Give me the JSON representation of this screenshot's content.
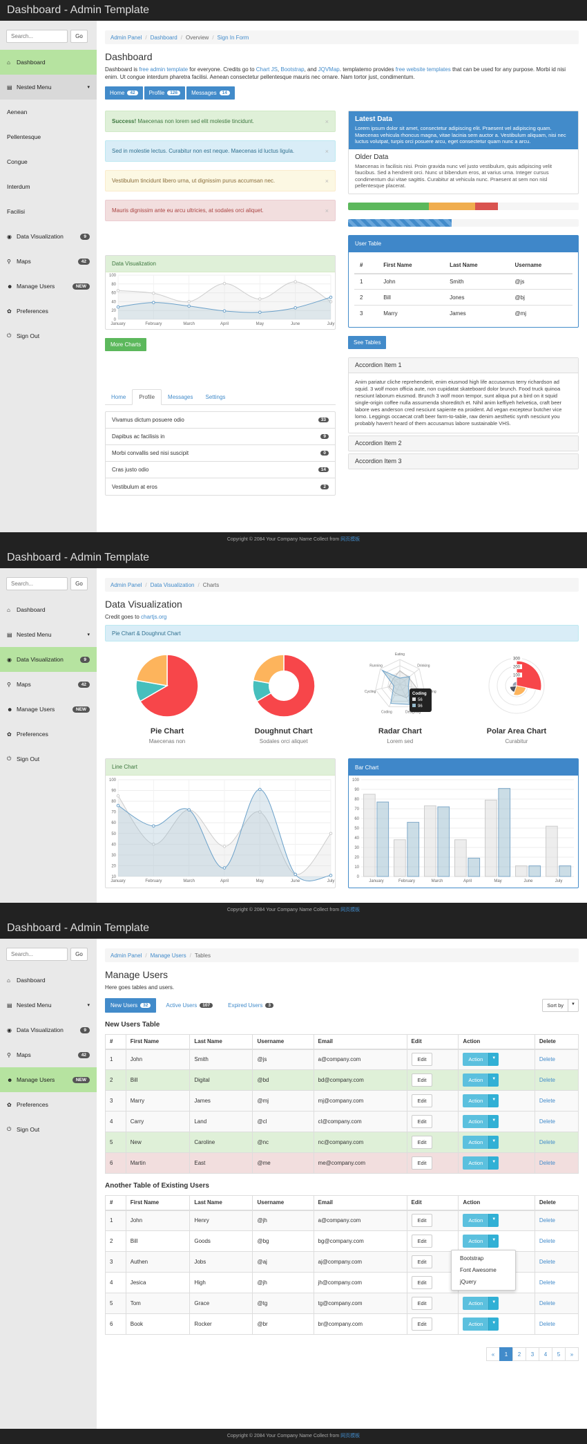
{
  "app_title": "Dashboard - Admin Template",
  "search": {
    "placeholder": "Search...",
    "go": "Go"
  },
  "footer": {
    "text": "Copyright © 2084 Your Company Name Collect from ",
    "link": "网页模板"
  },
  "s1": {
    "nav": [
      {
        "icon": "⌂",
        "label": "Dashboard"
      },
      {
        "icon": "▤",
        "label": "Nested Menu",
        "caret": "▾"
      },
      {
        "icon": "",
        "label": "Aenean"
      },
      {
        "icon": "",
        "label": "Pellentesque"
      },
      {
        "icon": "",
        "label": "Congue"
      },
      {
        "icon": "",
        "label": "Interdum"
      },
      {
        "icon": "",
        "label": "Facilisi"
      },
      {
        "icon": "◉",
        "label": "Data Visualization",
        "badge": "9"
      },
      {
        "icon": "⚲",
        "label": "Maps",
        "badge": "42"
      },
      {
        "icon": "☻",
        "label": "Manage Users",
        "badge": "NEW"
      },
      {
        "icon": "✿",
        "label": "Preferences"
      },
      {
        "icon": "⏻",
        "label": "Sign Out"
      }
    ],
    "crumbs": [
      "Admin Panel",
      "Dashboard",
      "Overview",
      "Sign In Form"
    ],
    "title": "Dashboard",
    "desc": {
      "p1": "Dashboard is ",
      "l1": "free admin template",
      "p2": " for everyone. Credits go to ",
      "l2": "Chart JS",
      "p3": ", ",
      "l3": "Bootstrap",
      "p4": ", and ",
      "l4": "JQVMap",
      "p5": ". templatemo provides ",
      "l5": "free website templates",
      "p6": " that can be used for any purpose. Morbi id nisi enim. Ut congue interdum pharetra facilisi. Aenean consectetur pellentesque mauris nec ornare. Nam tortor just, condimentum."
    },
    "pills": [
      {
        "label": "Home",
        "badge": "42"
      },
      {
        "label": "Profile",
        "badge": "126"
      },
      {
        "label": "Messages",
        "badge": "14"
      }
    ],
    "alerts": [
      {
        "strong": "Success!",
        "text": " Maecenas non lorem sed elit molestie tincidunt."
      },
      {
        "strong": "",
        "text": "Sed in molestie lectus. Curabitur non est neque. Maecenas id luctus ligula."
      },
      {
        "strong": "",
        "text": "Vestibulum tincidunt libero urna, ut dignissim purus accumsan nec."
      },
      {
        "strong": "",
        "text": "Mauris dignissim ante eu arcu ultricies, at sodales orci aliquet."
      }
    ],
    "close_glyph": "×",
    "latest": {
      "title": "Latest Data",
      "text": "Lorem ipsum dolor sit amet, consectetur adipiscing elit. Praesent vel adipiscing quam. Maecenas vehicula rhoncus magna, vitae lacinia sem auctor a. Vestibulum aliquam, nisi nec luctus volutpat, turpis orci posuere arcu, eget consectetur quam nunc a arcu.",
      "title2": "Older Data",
      "text2": "Maecenas in facilisis nisi. Proin gravida nunc vel justo vestibulum, quis adipiscing velit faucibus. Sed a hendrerit orci. Nunc ut bibendum eros, at varius urna. Integer cursus condimentum dui vitae sagittis. Curabitur at vehicula nunc. Praesent at sem non nisl pellentesque placerat."
    },
    "progress1": [
      {
        "pct": 35,
        "color": "#5cb85c"
      },
      {
        "pct": 20,
        "color": "#f0ad4e"
      },
      {
        "pct": 10,
        "color": "#d9534f"
      }
    ],
    "progress2": {
      "pct": 45,
      "color": "#428bca"
    },
    "dv_panel": "Data Visualization",
    "more_charts": "More Charts",
    "user_table": {
      "title": "User Table",
      "cols": [
        "#",
        "First Name",
        "Last Name",
        "Username"
      ],
      "rows": [
        [
          "1",
          "John",
          "Smith",
          "@js"
        ],
        [
          "2",
          "Bill",
          "Jones",
          "@bj"
        ],
        [
          "3",
          "Marry",
          "James",
          "@mj"
        ]
      ],
      "button": "See Tables"
    },
    "tabs": [
      "Home",
      "Profile",
      "Messages",
      "Settings"
    ],
    "list": [
      {
        "label": "Vivamus dictum posuere odio",
        "badge": "33"
      },
      {
        "label": "Dapibus ac facilisis in",
        "badge": "9"
      },
      {
        "label": "Morbi convallis sed nisi suscipit",
        "badge": "0"
      },
      {
        "label": "Cras justo odio",
        "badge": "14"
      },
      {
        "label": "Vestibulum at eros",
        "badge": "2"
      }
    ],
    "accordion": {
      "i1": "Accordion Item 1",
      "body": "Anim pariatur cliche reprehenderit, enim eiusmod high life accusamus terry richardson ad squid. 3 wolf moon officia aute, non cupidatat skateboard dolor brunch. Food truck quinoa nesciunt laborum eiusmod. Brunch 3 wolf moon tempor, sunt aliqua put a bird on it squid single-origin coffee nulla assumenda shoreditch et. Nihil anim keffiyeh helvetica, craft beer labore wes anderson cred nesciunt sapiente ea proident. Ad vegan excepteur butcher vice lomo. Leggings occaecat craft beer farm-to-table, raw denim aesthetic synth nesciunt you probably haven't heard of them accusamus labore sustainable VHS.",
      "i2": "Accordion Item 2",
      "i3": "Accordion Item 3"
    }
  },
  "s2": {
    "crumbs": [
      "Admin Panel",
      "Data Visualization",
      "Charts"
    ],
    "title": "Data Visualization",
    "credit_p": "Credit goes to ",
    "credit_l": "chartjs.org",
    "pie_panel": "Pie Chart & Doughnut Chart",
    "tiles": [
      {
        "name": "Pie Chart",
        "sub": "Maecenas non"
      },
      {
        "name": "Doughnut Chart",
        "sub": "Sodales orci aliquet"
      },
      {
        "name": "Radar Chart",
        "sub": "Lorem sed"
      },
      {
        "name": "Polar Area Chart",
        "sub": "Curabitur"
      }
    ],
    "radar_labels": [
      "Eating",
      "Drinking",
      "Sleeping",
      "Designing",
      "Coding",
      "Cycling",
      "Running"
    ],
    "tooltip": {
      "title": "Coding",
      "v1": "56",
      "v2": "96"
    },
    "polar_ticks": [
      "300",
      "200",
      "100"
    ],
    "line_panel": "Line Chart",
    "bar_panel": "Bar Chart"
  },
  "s3": {
    "crumbs": [
      "Admin Panel",
      "Manage Users",
      "Tables"
    ],
    "title": "Manage Users",
    "sub": "Here goes tables and users.",
    "tabs": [
      {
        "label": "New Users",
        "badge": "32"
      },
      {
        "label": "Active Users",
        "badge": "107"
      },
      {
        "label": "Expired Users",
        "badge": "3"
      }
    ],
    "sort": "Sort by",
    "t1_title": "New Users Table",
    "cols": [
      "#",
      "First Name",
      "Last Name",
      "Username",
      "Email",
      "Edit",
      "Action",
      "Delete"
    ],
    "t1": [
      [
        "1",
        "John",
        "Smith",
        "@js",
        "a@company.com"
      ],
      [
        "2",
        "Bill",
        "Digital",
        "@bd",
        "bd@company.com"
      ],
      [
        "3",
        "Marry",
        "James",
        "@mj",
        "mj@company.com"
      ],
      [
        "4",
        "Carry",
        "Land",
        "@cl",
        "cl@company.com"
      ],
      [
        "5",
        "New",
        "Caroline",
        "@nc",
        "nc@company.com"
      ],
      [
        "6",
        "Martin",
        "East",
        "@me",
        "me@company.com"
      ]
    ],
    "t2_title": "Another Table of Existing Users",
    "t2": [
      [
        "1",
        "John",
        "Henry",
        "@jh",
        "a@company.com"
      ],
      [
        "2",
        "Bill",
        "Goods",
        "@bg",
        "bg@company.com"
      ],
      [
        "3",
        "Authen",
        "Jobs",
        "@aj",
        "aj@company.com"
      ],
      [
        "4",
        "Jesica",
        "High",
        "@jh",
        "jh@company.com"
      ],
      [
        "5",
        "Tom",
        "Grace",
        "@tg",
        "tg@company.com"
      ],
      [
        "6",
        "Book",
        "Rocker",
        "@br",
        "br@company.com"
      ]
    ],
    "edit": "Edit",
    "action": "Action",
    "delete": "Delete",
    "dropdown": [
      "Bootstrap",
      "Font Awesome",
      "jQuery"
    ],
    "pages": [
      "«",
      "1",
      "2",
      "3",
      "4",
      "5",
      "»"
    ]
  },
  "chart_data": [
    {
      "type": "line",
      "title": "Data Visualization",
      "categories": [
        "January",
        "February",
        "March",
        "April",
        "May",
        "June",
        "July"
      ],
      "ylim": [
        0,
        100
      ],
      "yticks": [
        0,
        20,
        40,
        60,
        80,
        100
      ],
      "series": [
        {
          "values": [
            65,
            59,
            40,
            81,
            46,
            85,
            40
          ]
        },
        {
          "values": [
            28,
            38,
            30,
            19,
            16,
            26,
            50
          ]
        }
      ]
    },
    {
      "type": "pie",
      "title": "Pie Chart",
      "values": [
        300,
        50,
        100
      ],
      "colors": [
        "#f7464a",
        "#46bfbd",
        "#fdb45c"
      ]
    },
    {
      "type": "pie",
      "title": "Doughnut Chart",
      "values": [
        300,
        50,
        100
      ],
      "colors": [
        "#f7464a",
        "#46bfbd",
        "#fdb45c"
      ]
    },
    {
      "type": "line",
      "title": "Line Chart",
      "categories": [
        "January",
        "February",
        "March",
        "April",
        "May",
        "June",
        "July"
      ],
      "ylim": [
        10,
        100
      ],
      "yticks": [
        10,
        20,
        30,
        40,
        50,
        60,
        70,
        80,
        90,
        100
      ],
      "series": [
        {
          "values": [
            85,
            40,
            72,
            38,
            70,
            12,
            50
          ]
        },
        {
          "values": [
            76,
            57,
            72,
            18,
            91,
            12,
            11
          ]
        }
      ]
    },
    {
      "type": "bar",
      "title": "Bar Chart",
      "categories": [
        "January",
        "February",
        "March",
        "April",
        "May",
        "June",
        "July"
      ],
      "ylim": [
        0,
        100
      ],
      "yticks": [
        0,
        10,
        20,
        30,
        40,
        50,
        60,
        70,
        80,
        90,
        100
      ],
      "series": [
        {
          "values": [
            85,
            38,
            73,
            38,
            79,
            11,
            52
          ]
        },
        {
          "values": [
            77,
            56,
            72,
            19,
            91,
            11,
            11
          ]
        }
      ]
    }
  ]
}
